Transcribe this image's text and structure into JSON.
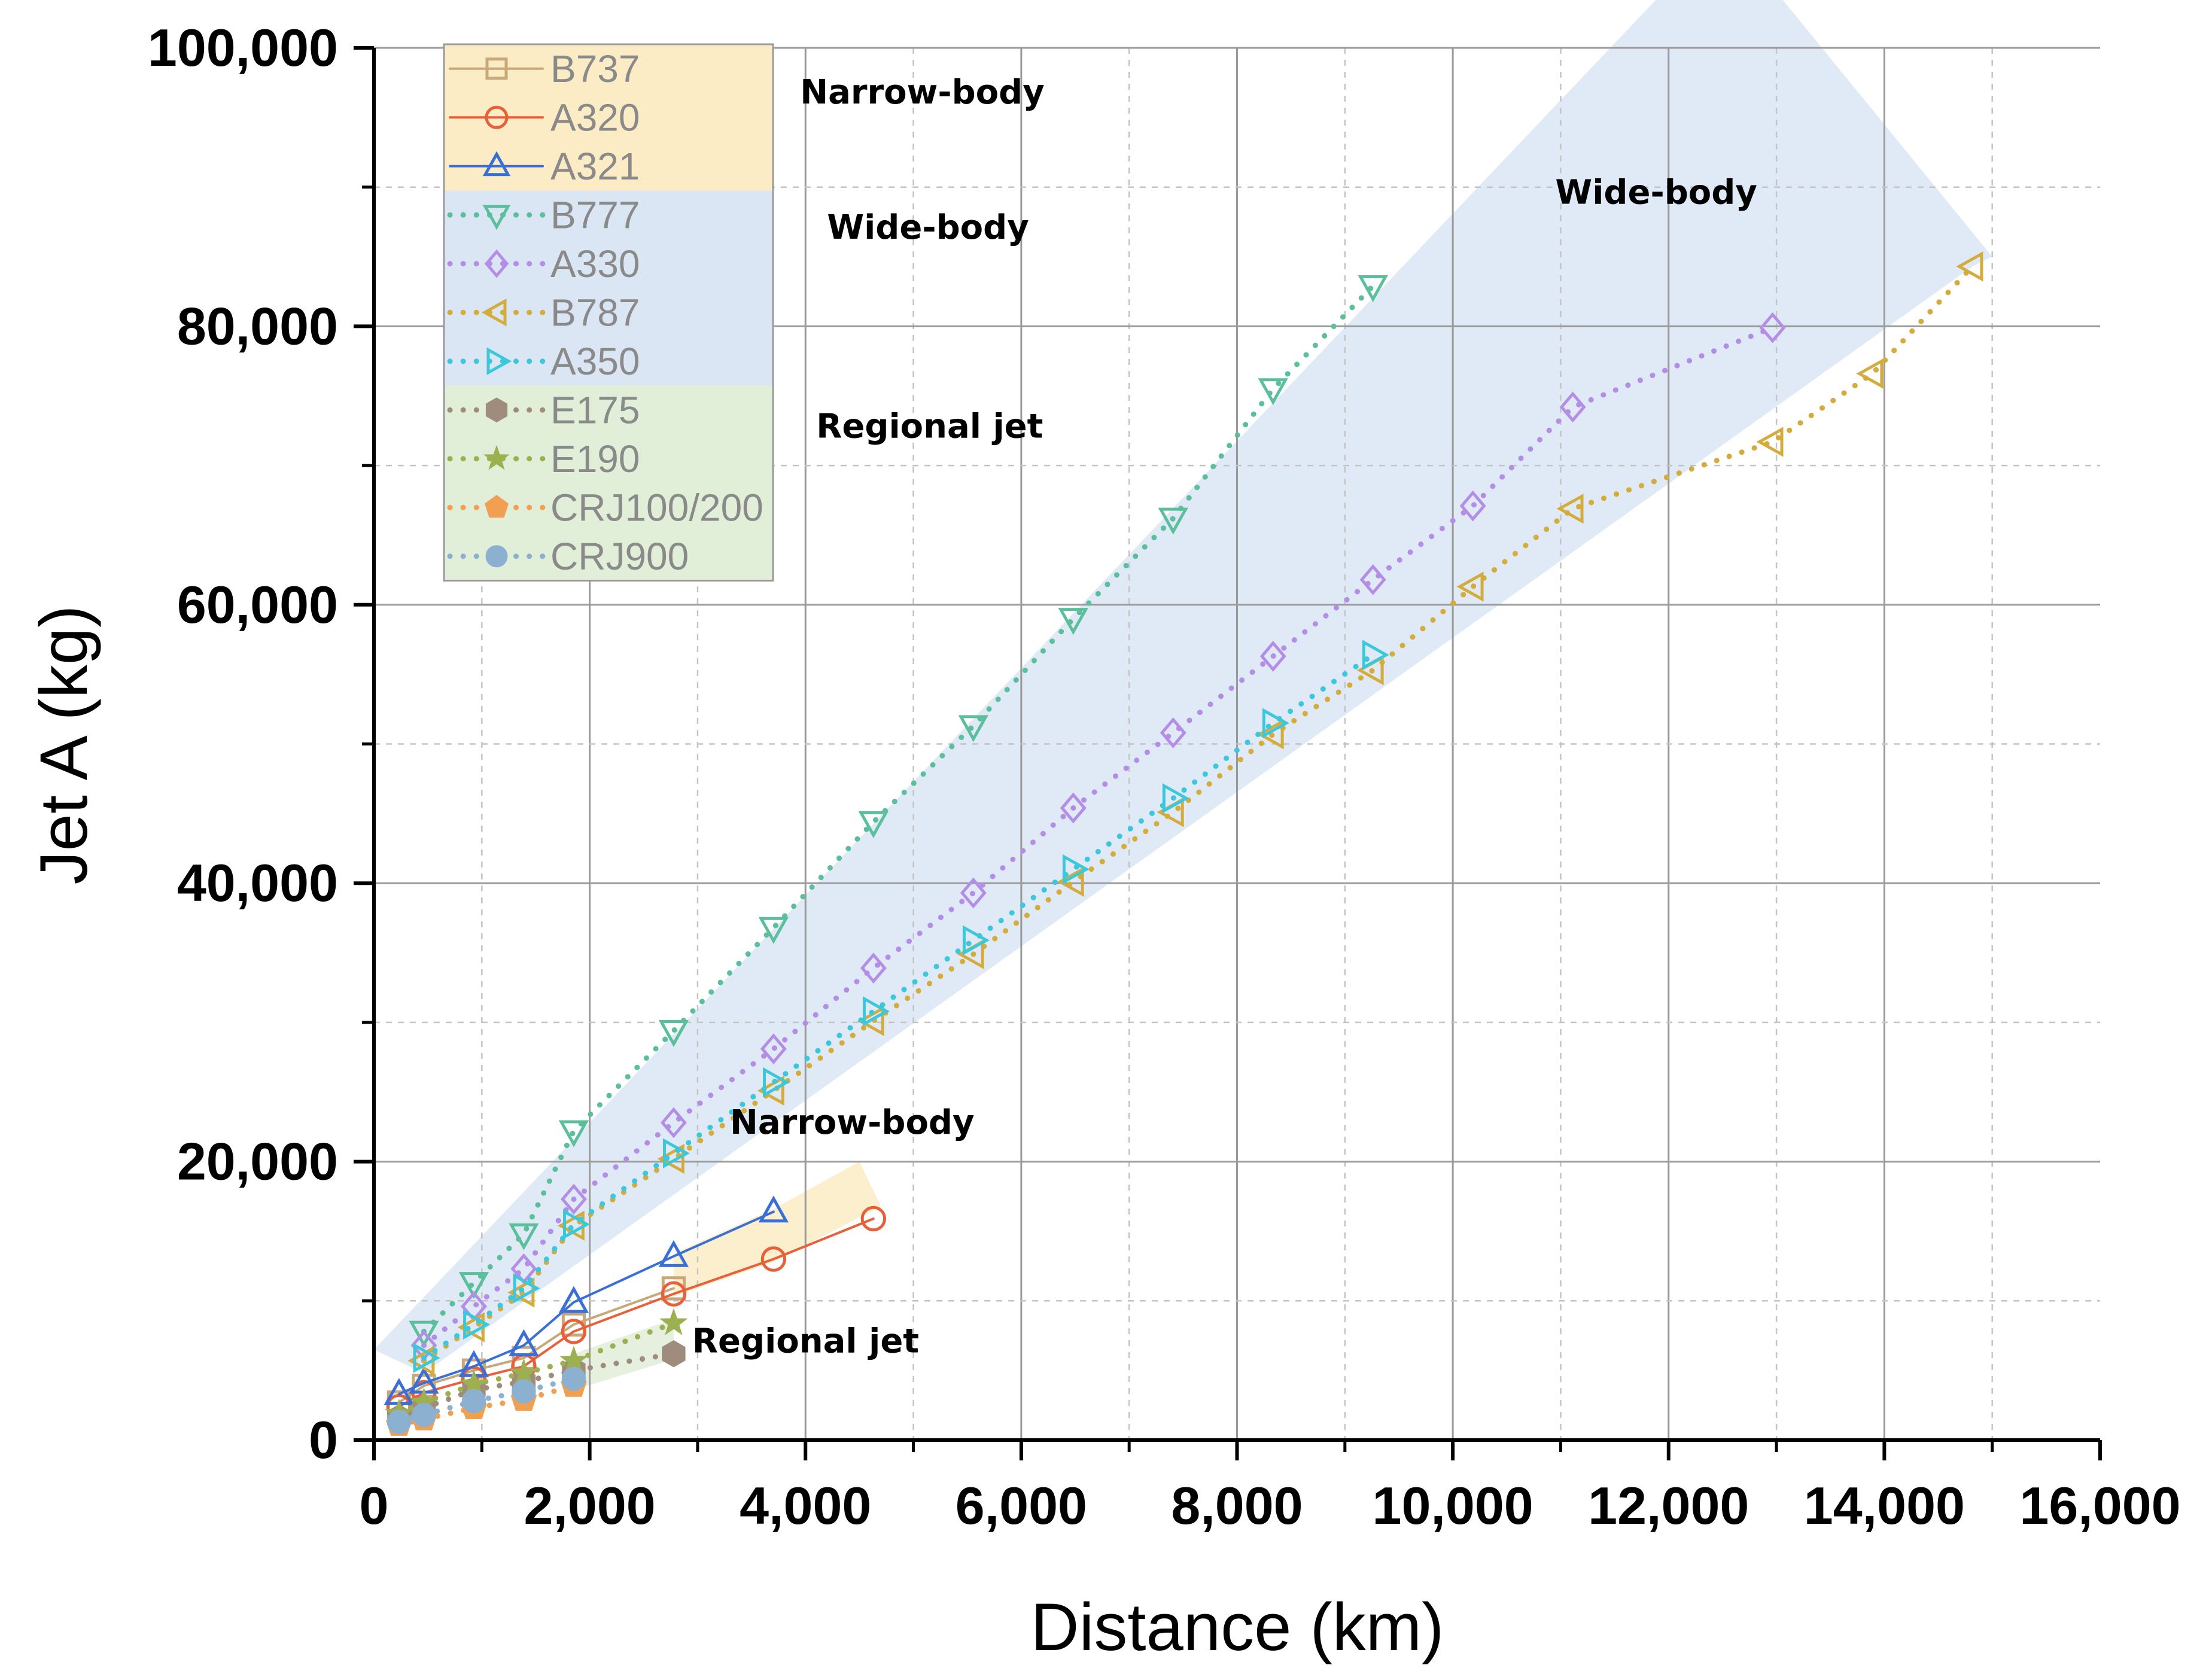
{
  "chart_data": {
    "type": "line",
    "xlabel": "Distance (km)",
    "ylabel": "Jet A (kg)",
    "xlim": [
      0,
      16000
    ],
    "ylim": [
      0,
      100000
    ],
    "grid": true,
    "x_ticks": [
      0,
      2000,
      4000,
      6000,
      8000,
      10000,
      12000,
      14000,
      16000
    ],
    "x_tick_labels": [
      "0",
      "2,000",
      "4,000",
      "6,000",
      "8,000",
      "10,000",
      "12,000",
      "14,000",
      "16,000"
    ],
    "y_ticks": [
      0,
      20000,
      40000,
      60000,
      80000,
      100000
    ],
    "y_tick_labels": [
      "0",
      "20,000",
      "40,000",
      "60,000",
      "80,000",
      "100,000"
    ],
    "legend_position": "top-left",
    "legend_groups": [
      {
        "label": "Narrow-body",
        "color": "#fcecc6"
      },
      {
        "label": "Wide-body",
        "color": "#dbe6f5"
      },
      {
        "label": "Regional jet",
        "color": "#e1eed8"
      }
    ],
    "series": [
      {
        "name": "B737",
        "group": "narrow",
        "color": "#c8a878",
        "marker": "square",
        "line": "solid",
        "x": [
          232,
          463,
          926,
          1389,
          1852,
          2778
        ],
        "y": [
          2700,
          3900,
          5000,
          5900,
          8300,
          10900
        ]
      },
      {
        "name": "A320",
        "group": "narrow",
        "color": "#e8603a",
        "marker": "circle",
        "line": "solid",
        "x": [
          232,
          463,
          926,
          1389,
          1852,
          2778,
          3704,
          4630
        ],
        "y": [
          2400,
          3400,
          4400,
          5300,
          7800,
          10500,
          13000,
          15900
        ]
      },
      {
        "name": "A321",
        "group": "narrow",
        "color": "#3a6fd8",
        "marker": "triangle-up",
        "line": "solid",
        "x": [
          232,
          463,
          926,
          1389,
          1852,
          2778,
          3704
        ],
        "y": [
          3300,
          4100,
          5300,
          6800,
          9900,
          13200,
          16400
        ]
      },
      {
        "name": "B777",
        "group": "wide",
        "color": "#5cbf9c",
        "marker": "triangle-down",
        "line": "dotted",
        "x": [
          463,
          926,
          1389,
          1852,
          2778,
          3704,
          4630,
          5556,
          6482,
          7408,
          8334,
          9260
        ],
        "y": [
          7800,
          11300,
          14800,
          22200,
          29400,
          36800,
          44400,
          51300,
          59000,
          66200,
          75500,
          82900
        ]
      },
      {
        "name": "A330",
        "group": "wide",
        "color": "#b48ee6",
        "marker": "diamond",
        "line": "dotted",
        "x": [
          463,
          926,
          1389,
          1852,
          2778,
          3704,
          4630,
          5556,
          6482,
          7408,
          8334,
          9260,
          10186,
          11112,
          12964
        ],
        "y": [
          6800,
          9600,
          12300,
          17300,
          22800,
          28100,
          33900,
          39300,
          45400,
          50800,
          56300,
          61800,
          67100,
          74200,
          79900
        ]
      },
      {
        "name": "B787",
        "group": "wide",
        "color": "#d4ac3c",
        "marker": "triangle-left",
        "line": "dotted",
        "x": [
          463,
          926,
          1389,
          1852,
          2778,
          3704,
          4630,
          5556,
          6482,
          7408,
          8334,
          9260,
          10186,
          11112,
          12964,
          13890,
          14816
        ],
        "y": [
          5700,
          8100,
          10600,
          15400,
          20200,
          25100,
          30100,
          34900,
          40100,
          45100,
          50700,
          55300,
          61300,
          66900,
          71700,
          76600,
          84300
        ]
      },
      {
        "name": "A350",
        "group": "wide",
        "color": "#3cc8dc",
        "marker": "triangle-right",
        "line": "dotted",
        "x": [
          463,
          926,
          1389,
          1852,
          2778,
          3704,
          4630,
          5556,
          6482,
          7408,
          8334,
          9260
        ],
        "y": [
          5900,
          8300,
          10900,
          15500,
          20600,
          25700,
          30800,
          35900,
          41000,
          46100,
          51500,
          56400
        ]
      },
      {
        "name": "E175",
        "group": "regional",
        "color": "#a08c7c",
        "marker": "hexagon",
        "line": "dotted",
        "x": [
          232,
          463,
          926,
          1389,
          1852,
          2778
        ],
        "y": [
          1600,
          2300,
          3600,
          4200,
          5000,
          6200
        ]
      },
      {
        "name": "E190",
        "group": "regional",
        "color": "#9cb050",
        "marker": "star",
        "line": "dotted",
        "x": [
          232,
          463,
          926,
          1389,
          1852,
          2778
        ],
        "y": [
          1900,
          2700,
          4000,
          4800,
          5700,
          8400
        ]
      },
      {
        "name": "CRJ100/200",
        "group": "regional",
        "color": "#f0a050",
        "marker": "pentagon",
        "line": "dotted",
        "x": [
          232,
          463,
          926,
          1389,
          1852
        ],
        "y": [
          1100,
          1500,
          2300,
          2900,
          3900
        ]
      },
      {
        "name": "CRJ900",
        "group": "regional",
        "color": "#8cb0d0",
        "marker": "circle-filled",
        "line": "dotted",
        "x": [
          232,
          463,
          926,
          1389,
          1852
        ],
        "y": [
          1300,
          1800,
          2800,
          3500,
          4400
        ]
      }
    ],
    "bands": [
      {
        "name": "wide-body",
        "color": "#dbe6f5",
        "polygon": [
          [
            0,
            6500
          ],
          [
            11950,
            104000
          ],
          [
            13000,
            104000
          ],
          [
            15000,
            85000
          ],
          [
            14816,
            84300
          ],
          [
            463,
            4800
          ]
        ]
      },
      {
        "name": "narrow-body",
        "color": "#fcecc6",
        "polygon": [
          [
            2778,
            13400
          ],
          [
            3704,
            16600
          ],
          [
            4500,
            20000
          ],
          [
            4700,
            16800
          ],
          [
            3704,
            12800
          ],
          [
            2778,
            10300
          ]
        ]
      },
      {
        "name": "regional-jet",
        "color": "#e1eed8",
        "polygon": [
          [
            1852,
            6200
          ],
          [
            2778,
            8700
          ],
          [
            2778,
            5800
          ],
          [
            1852,
            3600
          ]
        ]
      }
    ],
    "annotations": [
      {
        "text": "Narrow-body",
        "x": 3300,
        "y": 22000
      },
      {
        "text": "Wide-body",
        "x": 10950,
        "y": 88800
      },
      {
        "text": "Regional jet",
        "x": 2950,
        "y": 6300
      },
      {
        "text": "Narrow-body",
        "x": 3950,
        "y": 96000
      },
      {
        "text": "Wide-body",
        "x": 4200,
        "y": 86300
      },
      {
        "text": "Regional jet",
        "x": 4100,
        "y": 72000
      }
    ]
  }
}
